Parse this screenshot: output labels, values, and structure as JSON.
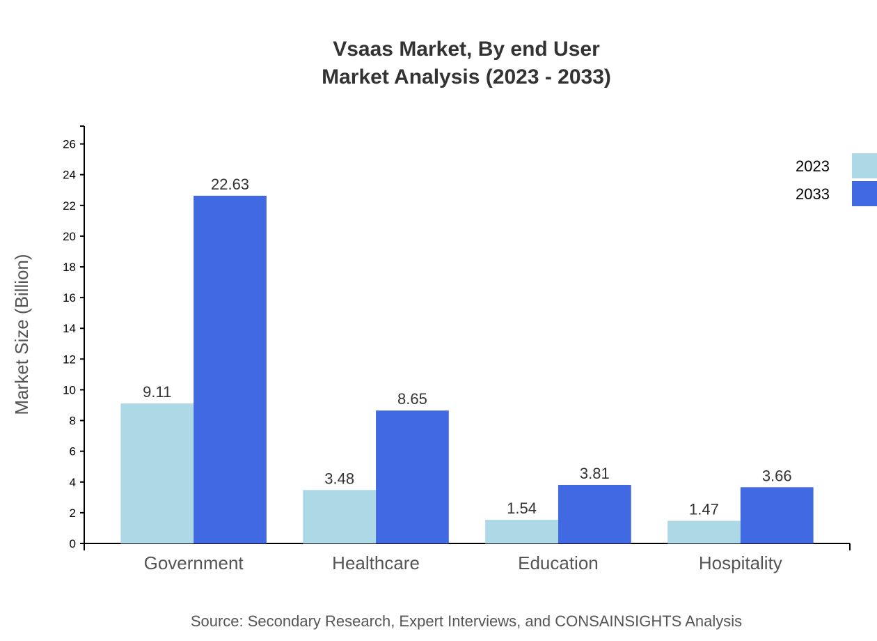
{
  "chart_data": {
    "type": "bar",
    "title": "Vsaas Market, By end User",
    "subtitle": "Market Analysis (2023 - 2033)",
    "xlabel": "",
    "ylabel": "Market Size (Billion)",
    "categories": [
      "Government",
      "Healthcare",
      "Education",
      "Hospitality"
    ],
    "series": [
      {
        "name": "2023",
        "color": "#ADD8E6",
        "values": [
          9.11,
          3.48,
          1.54,
          1.47
        ]
      },
      {
        "name": "2033",
        "color": "#4169E1",
        "values": [
          22.63,
          8.65,
          3.81,
          3.66
        ]
      }
    ],
    "ylim": [
      0,
      27.16
    ],
    "yticks": [
      0,
      2,
      4,
      6,
      8,
      10,
      12,
      14,
      16,
      18,
      20,
      22,
      24,
      26
    ],
    "grid": false,
    "legend": "top-right",
    "source": "Source: Secondary Research, Expert Interviews, and CONSAINSIGHTS Analysis"
  }
}
